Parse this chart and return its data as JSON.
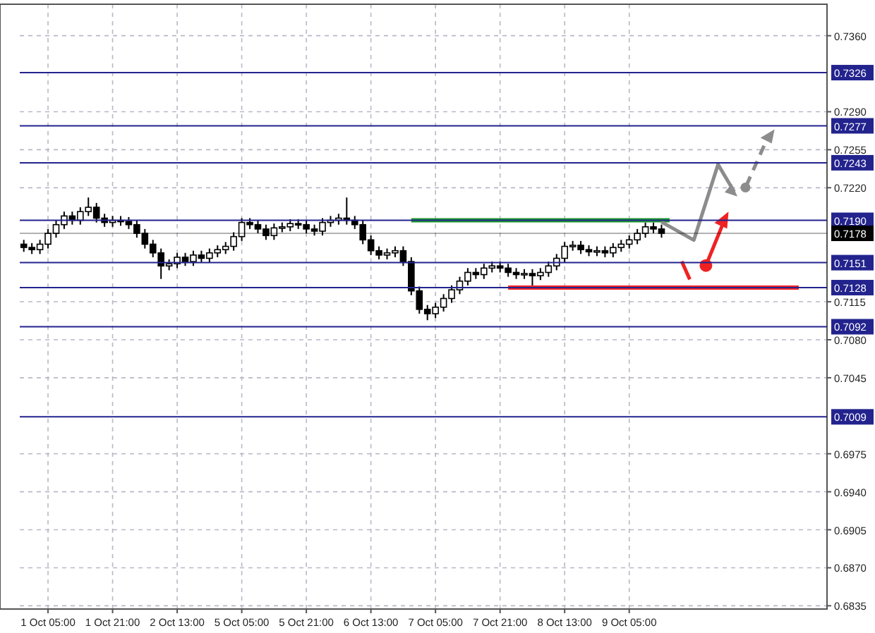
{
  "chart_data": {
    "type": "candlestick",
    "color": "#000000",
    "grid": true,
    "categories": [
      null,
      null,
      null,
      "1 Oct 05:00",
      null,
      null,
      null,
      null,
      null,
      null,
      null,
      "1 Oct 21:00",
      null,
      null,
      null,
      null,
      null,
      null,
      null,
      "2 Oct 13:00",
      null,
      null,
      null,
      null,
      null,
      null,
      null,
      "5 Oct 05:00",
      null,
      null,
      null,
      null,
      null,
      null,
      null,
      "5 Oct 21:00",
      null,
      null,
      null,
      null,
      null,
      null,
      null,
      "6 Oct 13:00",
      null,
      null,
      null,
      null,
      null,
      null,
      null,
      "7 Oct 05:00",
      null,
      null,
      null,
      null,
      null,
      null,
      null,
      "7 Oct 21:00",
      null,
      null,
      null,
      null,
      null,
      null,
      null,
      "8 Oct 13:00",
      null,
      null,
      null,
      null,
      null,
      null,
      null,
      "9 Oct 05:00",
      null,
      null,
      null,
      null,
      null,
      null,
      null,
      null,
      null,
      null,
      null,
      null,
      null,
      null,
      null,
      null,
      null,
      null,
      null,
      null,
      null,
      null,
      null,
      null
    ],
    "ohlc": [
      [
        0.7168,
        0.7172,
        0.7161,
        0.7165
      ],
      [
        0.7165,
        0.7169,
        0.7159,
        0.7163
      ],
      [
        0.7163,
        0.7172,
        0.7159,
        0.7168
      ],
      [
        0.7168,
        0.7182,
        0.7164,
        0.7178
      ],
      [
        0.7178,
        0.719,
        0.7174,
        0.7186
      ],
      [
        0.7186,
        0.7198,
        0.7182,
        0.7194
      ],
      [
        0.7194,
        0.7198,
        0.7186,
        0.719
      ],
      [
        0.719,
        0.7202,
        0.7186,
        0.7198
      ],
      [
        0.7198,
        0.7211,
        0.7194,
        0.7202
      ],
      [
        0.7202,
        0.7206,
        0.7188,
        0.7192
      ],
      [
        0.7192,
        0.7196,
        0.7184,
        0.7188
      ],
      [
        0.7188,
        0.7194,
        0.7184,
        0.719
      ],
      [
        0.719,
        0.7194,
        0.7185,
        0.7189
      ],
      [
        0.7189,
        0.7193,
        0.7182,
        0.7186
      ],
      [
        0.7186,
        0.719,
        0.7174,
        0.7178
      ],
      [
        0.7178,
        0.7182,
        0.7164,
        0.7168
      ],
      [
        0.7168,
        0.7172,
        0.7156,
        0.716
      ],
      [
        0.716,
        0.7164,
        0.7136,
        0.7148
      ],
      [
        0.7148,
        0.7154,
        0.7144,
        0.715
      ],
      [
        0.715,
        0.716,
        0.7146,
        0.7156
      ],
      [
        0.7156,
        0.716,
        0.7148,
        0.7152
      ],
      [
        0.7152,
        0.7162,
        0.7148,
        0.7158
      ],
      [
        0.7158,
        0.7162,
        0.7151,
        0.7155
      ],
      [
        0.7155,
        0.7164,
        0.7151,
        0.716
      ],
      [
        0.716,
        0.7167,
        0.7156,
        0.7163
      ],
      [
        0.7163,
        0.717,
        0.7159,
        0.7166
      ],
      [
        0.7166,
        0.7179,
        0.7162,
        0.7175
      ],
      [
        0.7175,
        0.7192,
        0.7171,
        0.7188
      ],
      [
        0.7188,
        0.7192,
        0.7182,
        0.7186
      ],
      [
        0.7186,
        0.719,
        0.7178,
        0.7182
      ],
      [
        0.7182,
        0.7186,
        0.7172,
        0.7176
      ],
      [
        0.7176,
        0.7187,
        0.7172,
        0.7183
      ],
      [
        0.7183,
        0.7188,
        0.7179,
        0.7184
      ],
      [
        0.7184,
        0.7191,
        0.718,
        0.7187
      ],
      [
        0.7187,
        0.7191,
        0.7182,
        0.7186
      ],
      [
        0.7186,
        0.719,
        0.7178,
        0.7182
      ],
      [
        0.7182,
        0.7186,
        0.7176,
        0.718
      ],
      [
        0.718,
        0.7192,
        0.7176,
        0.7188
      ],
      [
        0.7188,
        0.7194,
        0.7184,
        0.719
      ],
      [
        0.719,
        0.7196,
        0.7186,
        0.7192
      ],
      [
        0.7192,
        0.7211,
        0.7186,
        0.719
      ],
      [
        0.719,
        0.7194,
        0.7182,
        0.7186
      ],
      [
        0.7186,
        0.719,
        0.7168,
        0.7172
      ],
      [
        0.7172,
        0.7176,
        0.7158,
        0.7162
      ],
      [
        0.7162,
        0.7166,
        0.7154,
        0.7158
      ],
      [
        0.7158,
        0.7164,
        0.7154,
        0.716
      ],
      [
        0.716,
        0.7166,
        0.7156,
        0.7162
      ],
      [
        0.7162,
        0.7166,
        0.7148,
        0.7152
      ],
      [
        0.7152,
        0.7156,
        0.7121,
        0.7125
      ],
      [
        0.7125,
        0.7129,
        0.7104,
        0.7108
      ],
      [
        0.7108,
        0.7112,
        0.7098,
        0.7104
      ],
      [
        0.7104,
        0.7114,
        0.71,
        0.711
      ],
      [
        0.711,
        0.7122,
        0.7106,
        0.7118
      ],
      [
        0.7118,
        0.713,
        0.7114,
        0.7126
      ],
      [
        0.7126,
        0.7138,
        0.7122,
        0.7134
      ],
      [
        0.7134,
        0.7146,
        0.713,
        0.7142
      ],
      [
        0.7142,
        0.7146,
        0.7136,
        0.714
      ],
      [
        0.714,
        0.715,
        0.7136,
        0.7146
      ],
      [
        0.7146,
        0.7152,
        0.7142,
        0.7148
      ],
      [
        0.7148,
        0.7152,
        0.7142,
        0.7146
      ],
      [
        0.7146,
        0.715,
        0.7138,
        0.7142
      ],
      [
        0.7142,
        0.7146,
        0.7136,
        0.714
      ],
      [
        0.714,
        0.7145,
        0.7136,
        0.7141
      ],
      [
        0.7141,
        0.7145,
        0.7128,
        0.7139
      ],
      [
        0.7139,
        0.7146,
        0.7135,
        0.7142
      ],
      [
        0.7142,
        0.7152,
        0.7138,
        0.7148
      ],
      [
        0.7148,
        0.7159,
        0.7144,
        0.7155
      ],
      [
        0.7155,
        0.717,
        0.7151,
        0.7166
      ],
      [
        0.7166,
        0.7171,
        0.7162,
        0.7167
      ],
      [
        0.7167,
        0.7171,
        0.7159,
        0.7163
      ],
      [
        0.7163,
        0.7167,
        0.7157,
        0.7161
      ],
      [
        0.7161,
        0.7166,
        0.7157,
        0.7162
      ],
      [
        0.7162,
        0.7166,
        0.7156,
        0.716
      ],
      [
        0.716,
        0.7169,
        0.7156,
        0.7165
      ],
      [
        0.7165,
        0.7172,
        0.7161,
        0.7168
      ],
      [
        0.7168,
        0.7176,
        0.7164,
        0.7172
      ],
      [
        0.7172,
        0.7182,
        0.7168,
        0.7178
      ],
      [
        0.7178,
        0.7188,
        0.7174,
        0.7184
      ],
      [
        0.7184,
        0.7188,
        0.7178,
        0.7182
      ],
      [
        0.7182,
        0.7186,
        0.7174,
        0.7178
      ],
      null,
      null,
      null,
      null,
      null,
      null,
      null,
      null,
      null,
      null,
      null,
      null,
      null,
      null,
      null,
      null,
      null,
      null,
      null,
      null
    ],
    "series": [
      {
        "type": "line",
        "color": "#1a9a2a",
        "values": [
          null,
          null,
          null,
          null,
          null,
          null,
          null,
          null,
          null,
          null,
          null,
          null,
          null,
          null,
          null,
          null,
          null,
          null,
          null,
          null,
          null,
          null,
          null,
          null,
          null,
          null,
          null,
          null,
          null,
          null,
          null,
          null,
          null,
          null,
          null,
          null,
          null,
          null,
          null,
          null,
          null,
          null,
          null,
          null,
          null,
          null,
          null,
          null,
          0.719,
          0.719,
          0.719,
          0.719,
          0.719,
          0.719,
          0.719,
          0.719,
          0.719,
          0.719,
          0.719,
          0.719,
          0.719,
          0.719,
          0.719,
          0.719,
          0.719,
          0.719,
          0.719,
          0.719,
          0.719,
          0.719,
          0.719,
          0.719,
          0.719,
          0.719,
          0.719,
          0.719,
          0.719,
          0.719,
          0.719,
          0.719,
          0.719,
          null,
          null,
          null,
          null,
          null,
          null,
          null,
          null,
          null,
          null,
          null,
          null,
          null,
          null,
          null,
          null,
          null,
          null,
          null
        ]
      },
      {
        "type": "line",
        "color": "#ee2222",
        "values": [
          null,
          null,
          null,
          null,
          null,
          null,
          null,
          null,
          null,
          null,
          null,
          null,
          null,
          null,
          null,
          null,
          null,
          null,
          null,
          null,
          null,
          null,
          null,
          null,
          null,
          null,
          null,
          null,
          null,
          null,
          null,
          null,
          null,
          null,
          null,
          null,
          null,
          null,
          null,
          null,
          null,
          null,
          null,
          null,
          null,
          null,
          null,
          null,
          null,
          null,
          null,
          null,
          null,
          null,
          null,
          null,
          null,
          null,
          null,
          null,
          0.7128,
          0.7128,
          0.7128,
          0.7128,
          0.7128,
          0.7128,
          0.7128,
          0.7128,
          0.7128,
          0.7128,
          0.7128,
          0.7128,
          0.7128,
          0.7128,
          0.7128,
          0.7128,
          0.7128,
          0.7128,
          0.7128,
          0.7128,
          0.7128,
          0.7128,
          0.7128,
          0.7128,
          0.7128,
          0.7128,
          0.7128,
          0.7128,
          0.7128,
          0.7128,
          0.7128,
          0.7128,
          0.7128,
          0.7128,
          0.7128,
          0.7128,
          0.7128,
          null,
          null,
          null
        ]
      }
    ],
    "ylim": [
      0.6832,
      0.7389
    ],
    "yticks": [
      {
        "value": 0.736,
        "label": "0.7360"
      },
      {
        "value": 0.729,
        "label": "0.7290"
      },
      {
        "value": 0.7255,
        "label": "0.7255"
      },
      {
        "value": 0.722,
        "label": "0.7220"
      },
      {
        "value": 0.7115,
        "label": "0.7115"
      },
      {
        "value": 0.708,
        "label": "0.7080"
      },
      {
        "value": 0.7045,
        "label": "0.7045"
      },
      {
        "value": 0.6975,
        "label": "0.6975"
      },
      {
        "value": 0.694,
        "label": "0.6940"
      },
      {
        "value": 0.6905,
        "label": "0.6905"
      },
      {
        "value": 0.687,
        "label": "0.6870"
      },
      {
        "value": 0.6835,
        "label": "0.6835"
      }
    ],
    "ref_lines": [
      {
        "axis": "y",
        "value": 0.7326,
        "label": "0.7326",
        "color": "#23238e"
      },
      {
        "axis": "y",
        "value": 0.7277,
        "label": "0.7277",
        "color": "#23238e"
      },
      {
        "axis": "y",
        "value": 0.7243,
        "label": "0.7243",
        "color": "#23238e"
      },
      {
        "axis": "y",
        "value": 0.719,
        "label": "0.7190",
        "color": "#23238e"
      },
      {
        "axis": "y",
        "value": 0.7178,
        "label": "0.7178",
        "color": "#000000"
      },
      {
        "axis": "y",
        "value": 0.7151,
        "label": "0.7151",
        "color": "#23238e"
      },
      {
        "axis": "y",
        "value": 0.7128,
        "label": "0.7128",
        "color": "#23238e"
      },
      {
        "axis": "y",
        "value": 0.7092,
        "label": "0.7092",
        "color": "#23238e"
      },
      {
        "axis": "y",
        "value": 0.7009,
        "label": "0.7009",
        "color": "#23238e"
      }
    ]
  }
}
